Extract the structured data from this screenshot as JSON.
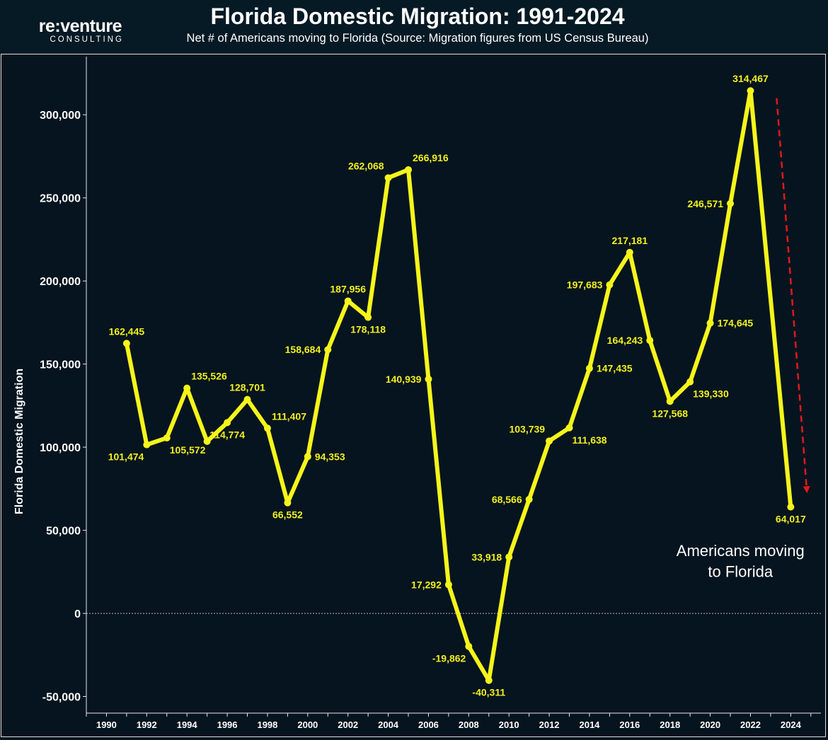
{
  "header": {
    "logo_main": "re:venture",
    "logo_sub": "CONSULTING",
    "title": "Florida Domestic Migration: 1991-2024",
    "subtitle": "Net # of Americans moving to Florida (Source: Migration figures from US Census Bureau)"
  },
  "colors": {
    "line": "#f5f51b",
    "label": "#f0f01e",
    "arrow": "#e01a1a",
    "axis": "#e8e8e8",
    "background": "#06141f"
  },
  "chart_data": {
    "type": "line",
    "title": "Florida Domestic Migration: 1991-2024",
    "ylabel": "Florida Domestic Migration",
    "xlabel": "",
    "xlim": [
      1989,
      2025.5
    ],
    "ylim": [
      -60000,
      335000
    ],
    "x_ticks": [
      1990,
      1992,
      1994,
      1996,
      1998,
      2000,
      2002,
      2004,
      2006,
      2008,
      2010,
      2012,
      2014,
      2016,
      2018,
      2020,
      2022,
      2024
    ],
    "x_tick_labels": [
      "1990",
      "1992",
      "1994",
      "1996",
      "1998",
      "2000",
      "2002",
      "2004",
      "2006",
      "2008",
      "2010",
      "2012",
      "2014",
      "2016",
      "2018",
      "2020",
      "2022",
      "2024"
    ],
    "y_ticks": [
      -50000,
      0,
      50000,
      100000,
      150000,
      200000,
      250000,
      300000
    ],
    "y_tick_labels": [
      "-50,000",
      "0",
      "50,000",
      "100,000",
      "150,000",
      "200,000",
      "250,000",
      "300,000"
    ],
    "x": [
      1991,
      1992,
      1993,
      1994,
      1995,
      1996,
      1997,
      1998,
      1999,
      2000,
      2001,
      2002,
      2003,
      2004,
      2005,
      2006,
      2007,
      2008,
      2009,
      2010,
      2011,
      2012,
      2013,
      2014,
      2015,
      2016,
      2017,
      2018,
      2019,
      2020,
      2021,
      2022,
      2024
    ],
    "series": [
      {
        "name": "Americans moving to Florida",
        "values": [
          162445,
          101474,
          105572,
          135526,
          103500,
          114774,
          128701,
          111407,
          66552,
          94353,
          158684,
          187956,
          178118,
          262068,
          266916,
          140939,
          17292,
          -19862,
          -40311,
          33918,
          68566,
          103739,
          111638,
          147435,
          197683,
          217181,
          164243,
          127568,
          139330,
          174645,
          246571,
          314467,
          64017
        ]
      }
    ],
    "data_labels": [
      {
        "x": 1991,
        "text": "162,445",
        "pos": "above"
      },
      {
        "x": 1992,
        "text": "101,474",
        "pos": "below-left"
      },
      {
        "x": 1993,
        "text": "105,572",
        "pos": "below-right"
      },
      {
        "x": 1994,
        "text": "135,526",
        "pos": "above-right"
      },
      {
        "x": 1996,
        "text": "114,774",
        "pos": "below"
      },
      {
        "x": 1997,
        "text": "128,701",
        "pos": "above"
      },
      {
        "x": 1998,
        "text": "111,407",
        "pos": "above-right"
      },
      {
        "x": 1999,
        "text": "66,552",
        "pos": "below"
      },
      {
        "x": 2000,
        "text": "94,353",
        "pos": "right"
      },
      {
        "x": 2001,
        "text": "158,684",
        "pos": "left"
      },
      {
        "x": 2002,
        "text": "187,956",
        "pos": "above"
      },
      {
        "x": 2003,
        "text": "178,118",
        "pos": "below"
      },
      {
        "x": 2004,
        "text": "262,068",
        "pos": "above-left"
      },
      {
        "x": 2005,
        "text": "266,916",
        "pos": "above-right"
      },
      {
        "x": 2006,
        "text": "140,939",
        "pos": "left"
      },
      {
        "x": 2007,
        "text": "17,292",
        "pos": "left"
      },
      {
        "x": 2008,
        "text": "-19,862",
        "pos": "below-left"
      },
      {
        "x": 2009,
        "text": "-40,311",
        "pos": "below"
      },
      {
        "x": 2010,
        "text": "33,918",
        "pos": "left"
      },
      {
        "x": 2011,
        "text": "68,566",
        "pos": "left"
      },
      {
        "x": 2012,
        "text": "103,739",
        "pos": "above-left"
      },
      {
        "x": 2013,
        "text": "111,638",
        "pos": "below-right"
      },
      {
        "x": 2014,
        "text": "147,435",
        "pos": "right"
      },
      {
        "x": 2015,
        "text": "197,683",
        "pos": "left"
      },
      {
        "x": 2016,
        "text": "217,181",
        "pos": "above"
      },
      {
        "x": 2017,
        "text": "164,243",
        "pos": "left"
      },
      {
        "x": 2018,
        "text": "127,568",
        "pos": "below"
      },
      {
        "x": 2019,
        "text": "139,330",
        "pos": "below-right"
      },
      {
        "x": 2020,
        "text": "174,645",
        "pos": "right"
      },
      {
        "x": 2021,
        "text": "246,571",
        "pos": "left"
      },
      {
        "x": 2022,
        "text": "314,467",
        "pos": "above"
      },
      {
        "x": 2024,
        "text": "64,017",
        "pos": "below"
      }
    ],
    "annotation": {
      "lines": [
        "Americans moving",
        "to Florida"
      ]
    },
    "trend_arrow": {
      "from": [
        2023.3,
        310000
      ],
      "to": [
        2024.8,
        74000
      ],
      "style": "dashed",
      "color": "#e01a1a"
    }
  }
}
